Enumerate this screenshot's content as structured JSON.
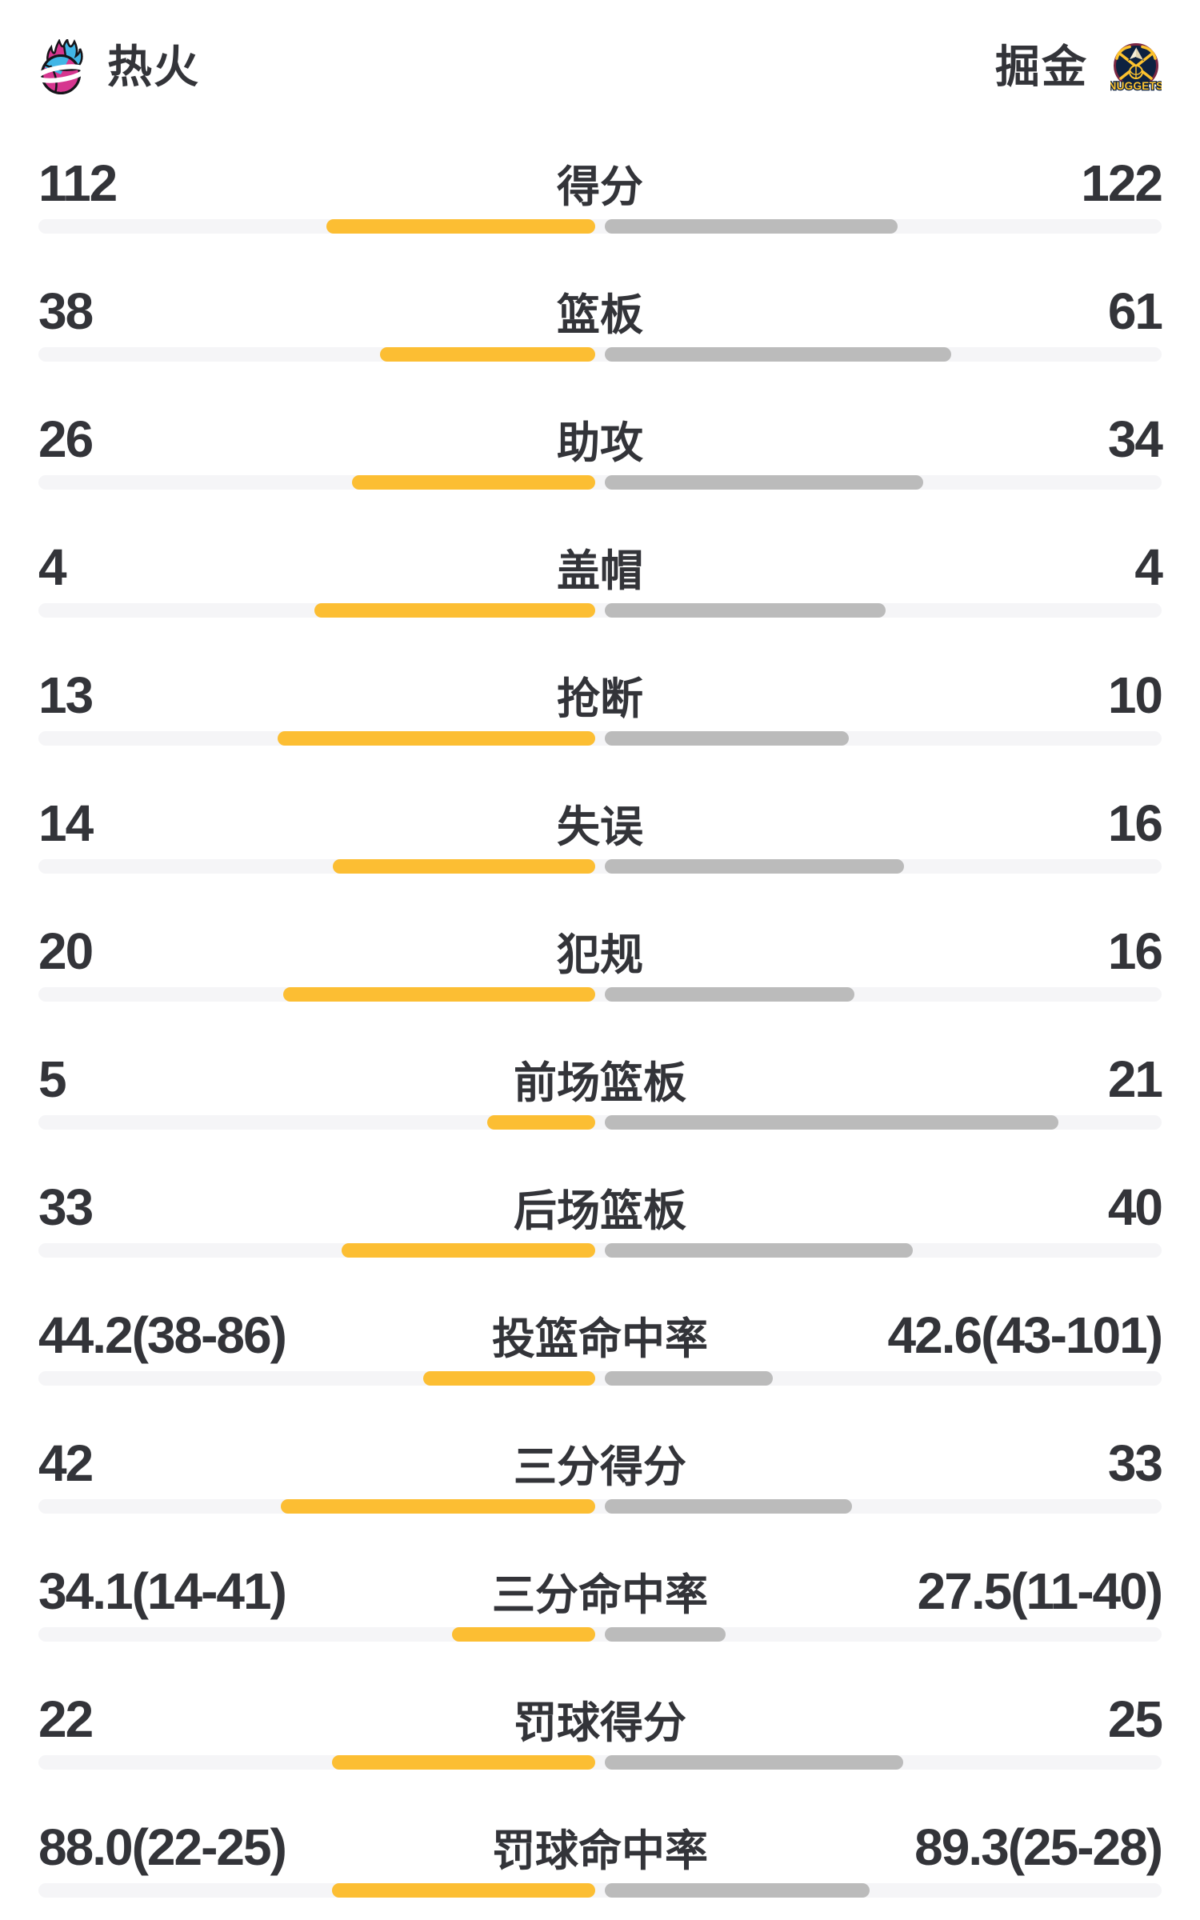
{
  "header": {
    "left_team": {
      "name": "热火",
      "logo": "miami-heat-vice-flaming-basketball"
    },
    "right_team": {
      "name": "掘金",
      "logo": "denver-nuggets-badge",
      "logo_text": "NUGGETS"
    }
  },
  "colors": {
    "home_bar": "#FCBE33",
    "away_bar": "#BBBBBB",
    "track": "#F5F5F7",
    "text": "#333439",
    "heat_pink": "#D6368F",
    "heat_blue": "#41B6E6",
    "nuggets_navy": "#0E2240",
    "nuggets_gold": "#FDC32E",
    "nuggets_maroon": "#7C2743"
  },
  "chart_data": {
    "type": "bar",
    "teams": [
      "热火",
      "掘金"
    ],
    "legend_position": "none",
    "grid": false,
    "bar_model": "count rows: width = value/(home+away) of half-track; percent rows: width = value/(value+100) of half-track",
    "rows": [
      {
        "label": "得分",
        "home": "112",
        "away": "122",
        "home_value": 112,
        "away_value": 122,
        "kind": "count"
      },
      {
        "label": "篮板",
        "home": "38",
        "away": "61",
        "home_value": 38,
        "away_value": 61,
        "kind": "count"
      },
      {
        "label": "助攻",
        "home": "26",
        "away": "34",
        "home_value": 26,
        "away_value": 34,
        "kind": "count"
      },
      {
        "label": "盖帽",
        "home": "4",
        "away": "4",
        "home_value": 4,
        "away_value": 4,
        "kind": "count"
      },
      {
        "label": "抢断",
        "home": "13",
        "away": "10",
        "home_value": 13,
        "away_value": 10,
        "kind": "count"
      },
      {
        "label": "失误",
        "home": "14",
        "away": "16",
        "home_value": 14,
        "away_value": 16,
        "kind": "count"
      },
      {
        "label": "犯规",
        "home": "20",
        "away": "16",
        "home_value": 20,
        "away_value": 16,
        "kind": "count"
      },
      {
        "label": "前场篮板",
        "home": "5",
        "away": "21",
        "home_value": 5,
        "away_value": 21,
        "kind": "count"
      },
      {
        "label": "后场篮板",
        "home": "33",
        "away": "40",
        "home_value": 33,
        "away_value": 40,
        "kind": "count"
      },
      {
        "label": "投篮命中率",
        "home": "44.2(38-86)",
        "away": "42.6(43-101)",
        "home_value": 44.2,
        "away_value": 42.6,
        "kind": "percent"
      },
      {
        "label": "三分得分",
        "home": "42",
        "away": "33",
        "home_value": 42,
        "away_value": 33,
        "kind": "count"
      },
      {
        "label": "三分命中率",
        "home": "34.1(14-41)",
        "away": "27.5(11-40)",
        "home_value": 34.1,
        "away_value": 27.5,
        "kind": "percent"
      },
      {
        "label": "罚球得分",
        "home": "22",
        "away": "25",
        "home_value": 22,
        "away_value": 25,
        "kind": "count"
      },
      {
        "label": "罚球命中率",
        "home": "88.0(22-25)",
        "away": "89.3(25-28)",
        "home_value": 88.0,
        "away_value": 89.3,
        "kind": "percent"
      }
    ]
  }
}
